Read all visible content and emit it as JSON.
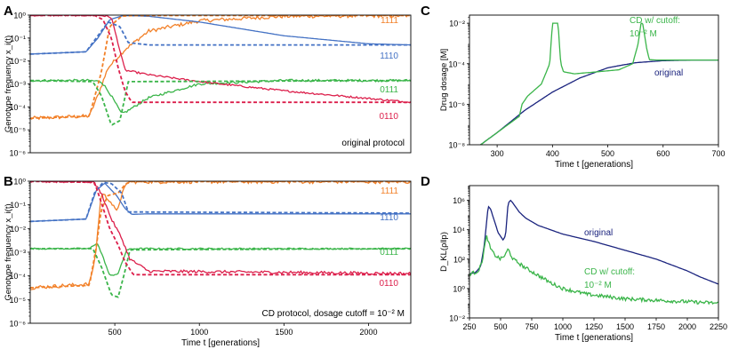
{
  "colors": {
    "c1111": "#f28028",
    "c1110": "#4472c4",
    "c0111": "#3bb54a",
    "c0110": "#dc1f4b",
    "original": "#1a237e",
    "cd": "#3bb54a",
    "axis": "#000000"
  },
  "chart_data": [
    {
      "panel": "A",
      "type": "line",
      "annotation": "original protocol",
      "xlabel": "",
      "ylabel": "Genotype frequency x_i(t)",
      "xlim": [
        0,
        2250
      ],
      "xticks": [],
      "ylim_log10": [
        -6,
        0
      ],
      "ytick_labels": [
        "10⁻⁶",
        "10⁻⁵",
        "10⁻⁴",
        "10⁻³",
        "10⁻²",
        "10⁻¹",
        "10⁰"
      ],
      "series": [
        {
          "name": "1111",
          "style": "solid",
          "color": "c1111",
          "x": [
            0,
            350,
            400,
            460,
            560,
            700,
            1000,
            1500,
            2250
          ],
          "log10y": [
            -4.5,
            -4.4,
            -3.5,
            -2.3,
            -1.5,
            -0.7,
            -0.25,
            -0.05,
            -0.02
          ],
          "noise": 0.08
        },
        {
          "name": "1110",
          "style": "solid",
          "color": "c1110",
          "x": [
            0,
            330,
            400,
            470,
            550,
            700,
            1000,
            1500,
            2000,
            2250
          ],
          "log10y": [
            -1.7,
            -1.6,
            -1.0,
            -0.2,
            -0.02,
            -0.05,
            -0.3,
            -0.9,
            -1.25,
            -1.3
          ],
          "noise": 0
        },
        {
          "name": "0111",
          "style": "solid",
          "color": "c0111",
          "x": [
            0,
            350,
            420,
            470,
            540,
            570,
            700,
            1000,
            1500,
            2250
          ],
          "log10y": [
            -2.85,
            -2.85,
            -2.9,
            -3.4,
            -4.3,
            -4.2,
            -3.6,
            -3.0,
            -2.85,
            -2.85
          ],
          "noise": 0.05
        },
        {
          "name": "0110",
          "style": "solid",
          "color": "c0110",
          "x": [
            0,
            380,
            430,
            480,
            560,
            700,
            1000,
            1500,
            2250
          ],
          "log10y": [
            -0.01,
            -0.01,
            -0.02,
            -0.1,
            -2.4,
            -2.6,
            -2.9,
            -3.3,
            -3.8
          ],
          "noise": 0.04
        },
        {
          "name": "1111 (dashed)",
          "style": "dashed",
          "color": "c1111",
          "x": [
            0,
            350,
            420,
            470,
            540,
            600,
            2250
          ],
          "log10y": [
            -4.5,
            -4.4,
            -2.5,
            -0.5,
            -0.05,
            -0.02,
            -0.02
          ],
          "noise": 0
        },
        {
          "name": "1110 (dashed)",
          "style": "dashed",
          "color": "c1110",
          "x": [
            0,
            330,
            390,
            460,
            530,
            580,
            700,
            2250
          ],
          "log10y": [
            -1.7,
            -1.6,
            -1.0,
            -0.3,
            -0.5,
            -1.2,
            -1.3,
            -1.3
          ],
          "noise": 0
        },
        {
          "name": "0111 (dashed)",
          "style": "dashed",
          "color": "c0111",
          "x": [
            0,
            370,
            420,
            480,
            530,
            580,
            2250
          ],
          "log10y": [
            -2.85,
            -2.9,
            -3.5,
            -4.8,
            -4.6,
            -2.9,
            -2.85
          ],
          "noise": 0
        },
        {
          "name": "0110 (dashed)",
          "style": "dashed",
          "color": "c0110",
          "x": [
            0,
            380,
            430,
            480,
            520,
            560,
            600,
            2250
          ],
          "log10y": [
            -0.01,
            -0.01,
            -0.2,
            -1.0,
            -2.3,
            -3.3,
            -3.8,
            -3.8
          ],
          "noise": 0
        }
      ],
      "labels": [
        {
          "text": "1111",
          "color": "c1111",
          "log10y": -0.15
        },
        {
          "text": "1110",
          "color": "c1110",
          "log10y": -1.6
        },
        {
          "text": "0111",
          "color": "c0111",
          "log10y": -3.15
        },
        {
          "text": "0110",
          "color": "c0110",
          "log10y": -4.0
        }
      ]
    },
    {
      "panel": "B",
      "type": "line",
      "annotation": "CD protocol, dosage cutoff = 10⁻² M",
      "xlabel": "Time t [generations]",
      "ylabel": "Genotype frequency x_i(t)",
      "xlim": [
        0,
        2250
      ],
      "xticks": [
        500,
        1000,
        1500,
        2000
      ],
      "ylim_log10": [
        -6,
        0
      ],
      "ytick_labels": [
        "10⁻⁶",
        "10⁻⁵",
        "10⁻⁴",
        "10⁻³",
        "10⁻²",
        "10⁻¹",
        "10⁰"
      ],
      "series": [
        {
          "name": "1111",
          "style": "solid",
          "color": "c1111",
          "x": [
            0,
            350,
            385,
            420,
            470,
            510,
            545,
            575,
            600,
            2250
          ],
          "log10y": [
            -4.5,
            -4.35,
            -3.2,
            -0.5,
            -0.8,
            -1.3,
            -0.5,
            -0.05,
            -0.02,
            -0.02
          ],
          "noise": 0.08
        },
        {
          "name": "1110",
          "style": "solid",
          "color": "c1110",
          "x": [
            0,
            330,
            390,
            440,
            510,
            560,
            600,
            700,
            2250
          ],
          "log10y": [
            -1.7,
            -1.6,
            -0.4,
            -0.08,
            -0.6,
            -1.15,
            -1.4,
            -1.38,
            -1.38
          ],
          "noise": 0
        },
        {
          "name": "0111",
          "style": "solid",
          "color": "c0111",
          "x": [
            0,
            350,
            395,
            430,
            470,
            520,
            570,
            620,
            2250
          ],
          "log10y": [
            -2.85,
            -2.85,
            -2.6,
            -3.2,
            -4.0,
            -3.9,
            -2.9,
            -2.85,
            -2.85
          ],
          "noise": 0.03
        },
        {
          "name": "0110",
          "style": "solid",
          "color": "c0110",
          "x": [
            0,
            370,
            420,
            480,
            540,
            590,
            700,
            2250
          ],
          "log10y": [
            -0.01,
            -0.01,
            -0.5,
            -1.6,
            -2.4,
            -3.3,
            -3.8,
            -3.9
          ],
          "noise": 0.06
        },
        {
          "name": "1111 (dashed)",
          "style": "dashed",
          "color": "c1111",
          "x": [
            0,
            350,
            390,
            420,
            460,
            520,
            560,
            590,
            2250
          ],
          "log10y": [
            -4.5,
            -4.4,
            -2.8,
            -1.2,
            -0.6,
            -0.5,
            -0.15,
            -0.02,
            -0.02
          ],
          "noise": 0
        },
        {
          "name": "1110 (dashed)",
          "style": "dashed",
          "color": "c1110",
          "x": [
            0,
            330,
            380,
            430,
            480,
            540,
            580,
            2250
          ],
          "log10y": [
            -1.7,
            -1.6,
            -0.5,
            -0.05,
            -0.1,
            -0.5,
            -1.3,
            -1.35
          ],
          "noise": 0
        },
        {
          "name": "0111 (dashed)",
          "style": "dashed",
          "color": "c0111",
          "x": [
            0,
            370,
            420,
            480,
            520,
            560,
            590,
            2250
          ],
          "log10y": [
            -2.85,
            -2.85,
            -3.6,
            -4.8,
            -4.9,
            -3.8,
            -2.9,
            -2.85
          ],
          "noise": 0
        },
        {
          "name": "0110 (dashed)",
          "style": "dashed",
          "color": "c0110",
          "x": [
            0,
            380,
            420,
            470,
            520,
            560,
            610,
            2250
          ],
          "log10y": [
            -0.01,
            -0.05,
            -0.9,
            -2.0,
            -2.7,
            -3.4,
            -3.95,
            -3.95
          ],
          "noise": 0
        }
      ],
      "labels": [
        {
          "text": "1111",
          "color": "c1111",
          "log10y": -0.5
        },
        {
          "text": "1110",
          "color": "c1110",
          "log10y": -1.65
        },
        {
          "text": "0111",
          "color": "c0111",
          "log10y": -3.2
        },
        {
          "text": "0110",
          "color": "c0110",
          "log10y": -4.6
        }
      ]
    },
    {
      "panel": "C",
      "type": "line",
      "xlabel": "Time t [generations]",
      "ylabel": "Drug dosage [M]",
      "xlim": [
        250,
        700
      ],
      "xticks": [
        300,
        400,
        500,
        600,
        700
      ],
      "ylim_log10": [
        -8,
        -1.6
      ],
      "ytick_values": [
        -8,
        -6,
        -4,
        -2
      ],
      "ytick_labels": [
        "10⁻⁸",
        "10⁻⁶",
        "10⁻⁴",
        "10⁻²"
      ],
      "series": [
        {
          "name": "original",
          "style": "solid",
          "color": "original",
          "x": [
            250,
            270,
            300,
            350,
            400,
            450,
            500,
            550,
            600,
            650,
            700
          ],
          "log10y": [
            -8.6,
            -8.0,
            -7.4,
            -6.3,
            -5.4,
            -4.7,
            -4.2,
            -3.95,
            -3.85,
            -3.82,
            -3.82
          ],
          "noise": 0
        },
        {
          "name": "CD w/ cutoff",
          "style": "solid",
          "color": "cd",
          "x": [
            250,
            270,
            300,
            340,
            345,
            355,
            380,
            395,
            400,
            403,
            410,
            415,
            420,
            440,
            480,
            520,
            545,
            555,
            560,
            563,
            570,
            575,
            590,
            700
          ],
          "log10y": [
            -8.6,
            -8.0,
            -7.4,
            -6.6,
            -6.0,
            -5.6,
            -5.0,
            -4.0,
            -2.0,
            -2.0,
            -2.0,
            -4.0,
            -4.4,
            -4.5,
            -4.4,
            -4.3,
            -4.0,
            -3.0,
            -2.0,
            -2.0,
            -3.2,
            -3.8,
            -3.82,
            -3.82
          ],
          "noise": 0
        }
      ],
      "labels": [
        {
          "text": "original",
          "color": "original"
        },
        {
          "text": "CD w/ cutoff:",
          "color": "cd"
        },
        {
          "text": "10⁻² M",
          "color": "cd"
        }
      ]
    },
    {
      "panel": "D",
      "type": "line",
      "xlabel": "Time t [generations]",
      "ylabel": "D_KL(ρ‖p)",
      "xlim": [
        250,
        2250
      ],
      "xticks": [
        250,
        500,
        750,
        1000,
        1250,
        1500,
        1750,
        2000,
        2250
      ],
      "ylim_log10": [
        -2,
        7
      ],
      "ytick_values": [
        -2,
        0,
        2,
        4,
        6
      ],
      "ytick_labels": [
        "10⁻²",
        "10⁰",
        "10²",
        "10⁴",
        "10⁶"
      ],
      "series": [
        {
          "name": "original",
          "style": "solid",
          "color": "original",
          "x": [
            250,
            300,
            340,
            370,
            400,
            420,
            450,
            480,
            520,
            540,
            560,
            580,
            600,
            650,
            700,
            800,
            1000,
            1250,
            1500,
            1750,
            2000,
            2100,
            2250
          ],
          "log10y": [
            1.0,
            1.1,
            1.5,
            3.0,
            5.6,
            5.4,
            4.6,
            3.8,
            3.3,
            3.6,
            5.8,
            6.0,
            5.8,
            5.2,
            4.8,
            4.3,
            3.7,
            3.2,
            2.6,
            2.0,
            1.2,
            0.8,
            0.3
          ],
          "noise": 0
        },
        {
          "name": "CD w/ cutoff",
          "style": "solid",
          "color": "cd",
          "x": [
            250,
            300,
            330,
            355,
            370,
            390,
            400,
            420,
            450,
            500,
            540,
            560,
            570,
            600,
            700,
            800,
            900,
            1000,
            1200,
            1500,
            2000,
            2250
          ],
          "log10y": [
            1.0,
            1.1,
            1.3,
            2.0,
            2.8,
            3.6,
            3.2,
            2.7,
            2.3,
            2.0,
            2.3,
            2.7,
            2.5,
            2.0,
            1.4,
            0.9,
            0.4,
            0.0,
            -0.4,
            -0.7,
            -0.9,
            -1.0
          ],
          "noise": 0.12
        }
      ],
      "labels": [
        {
          "text": "original",
          "color": "original"
        },
        {
          "text": "CD w/ cutoff:",
          "color": "cd"
        },
        {
          "text": "10⁻² M",
          "color": "cd"
        }
      ]
    }
  ]
}
